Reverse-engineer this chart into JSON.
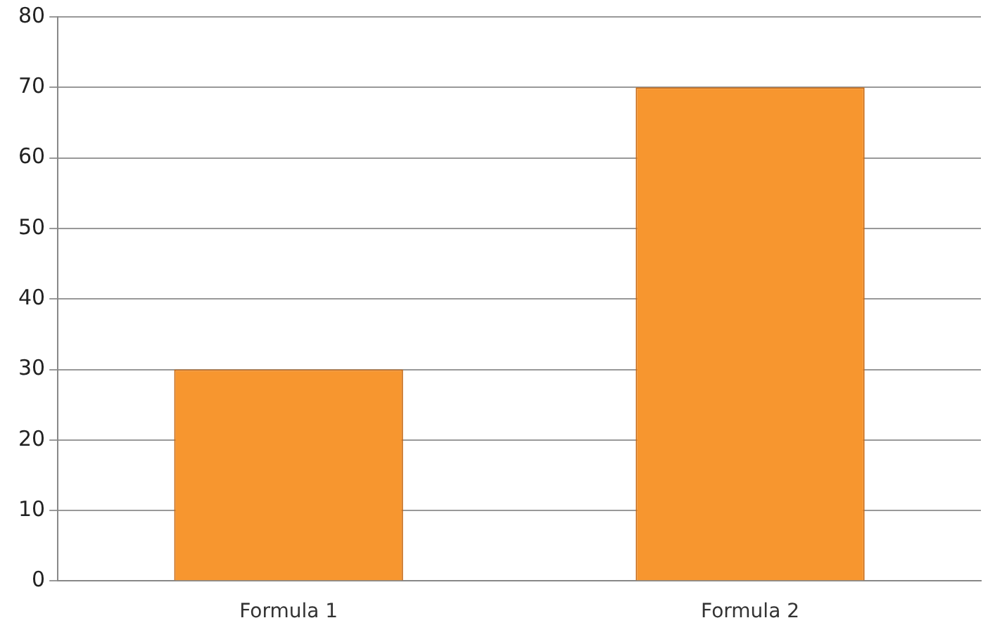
{
  "chart_data": {
    "type": "bar",
    "categories": [
      "Formula 1",
      "Formula 2"
    ],
    "values": [
      30,
      70
    ],
    "color": "#f7962f",
    "ylim": [
      0,
      80
    ],
    "yticks": [
      0,
      10,
      20,
      30,
      40,
      50,
      60,
      70,
      80
    ],
    "grid": "y",
    "legend": false
  }
}
